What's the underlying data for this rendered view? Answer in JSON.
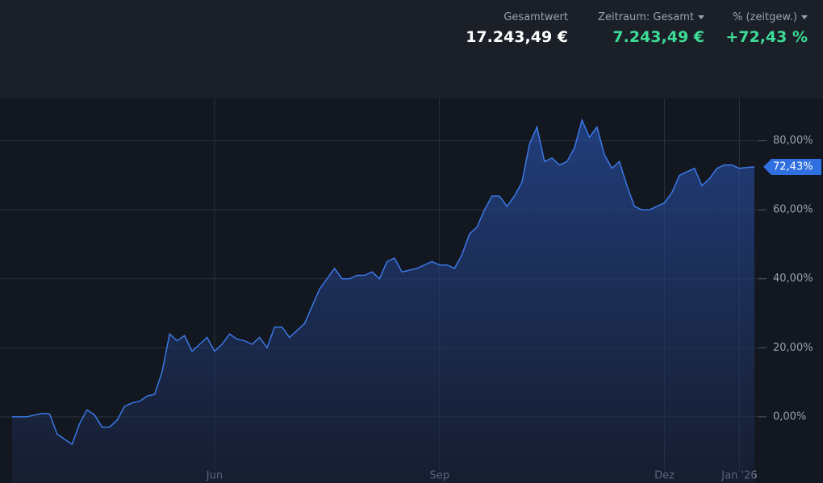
{
  "header": {
    "items": [
      {
        "label": "Gesamtwert",
        "value": "17.243,49 €"
      },
      {
        "label": "Zeitraum: Gesamt",
        "value": "7.243,49 €"
      },
      {
        "label": "% (zeitgew.)",
        "value": "+72,43 %"
      }
    ]
  },
  "chart_data": {
    "type": "area",
    "categories": [
      null,
      null,
      null,
      null,
      null,
      null,
      null,
      null,
      null,
      null,
      null,
      null,
      null,
      null,
      null,
      null,
      null,
      null,
      null,
      null,
      null,
      null,
      null,
      null,
      null,
      null,
      null,
      "Jun",
      null,
      null,
      null,
      null,
      null,
      null,
      null,
      null,
      null,
      null,
      null,
      null,
      null,
      null,
      null,
      null,
      null,
      null,
      null,
      null,
      null,
      null,
      null,
      null,
      null,
      null,
      null,
      null,
      null,
      "Sep",
      null,
      null,
      null,
      null,
      null,
      null,
      null,
      null,
      null,
      null,
      null,
      null,
      null,
      null,
      null,
      null,
      null,
      null,
      null,
      null,
      null,
      null,
      null,
      null,
      null,
      null,
      null,
      null,
      null,
      "Dez",
      null,
      null,
      null,
      null,
      null,
      null,
      null,
      null,
      null,
      "Jan '26",
      null,
      null
    ],
    "series": [
      {
        "color": "#3b78e7",
        "values": [
          0,
          0,
          0,
          0.5,
          1,
          0.8,
          -5,
          -6.5,
          -8,
          -2,
          2,
          0.5,
          -3,
          -3,
          -1,
          3,
          4,
          4.5,
          6,
          6.5,
          13,
          24,
          22,
          23.5,
          19,
          21,
          23,
          19,
          21,
          24,
          22.5,
          22,
          21,
          23,
          20,
          26,
          26,
          23,
          25,
          27,
          32,
          37,
          40,
          43,
          40,
          40,
          41,
          41,
          42,
          40,
          45,
          46,
          42,
          42.5,
          43,
          44,
          45,
          44,
          44,
          43,
          47,
          53,
          55,
          60,
          64,
          64,
          61,
          64,
          68,
          79,
          84,
          74,
          75,
          73,
          74,
          78,
          86,
          81,
          84,
          76,
          72,
          74,
          67,
          61,
          60,
          60,
          61,
          62,
          65,
          70,
          71,
          72,
          67,
          69,
          72,
          73,
          73,
          72,
          72.3,
          72.43
        ],
        "value_labels": [
          null,
          null,
          null,
          null,
          null,
          null,
          null,
          null,
          null,
          null,
          null,
          null,
          null,
          null,
          null,
          null,
          null,
          null,
          null,
          null,
          null,
          null,
          null,
          null,
          null,
          null,
          null,
          null,
          null,
          null,
          null,
          null,
          null,
          null,
          null,
          null,
          null,
          null,
          null,
          null,
          null,
          null,
          null,
          null,
          null,
          null,
          null,
          null,
          null,
          null,
          null,
          null,
          null,
          null,
          null,
          null,
          null,
          null,
          null,
          null,
          null,
          null,
          null,
          null,
          null,
          null,
          null,
          null,
          null,
          null,
          null,
          null,
          null,
          null,
          null,
          null,
          null,
          null,
          null,
          null,
          null,
          null,
          null,
          null,
          null,
          null,
          null,
          null,
          null,
          null,
          null,
          null,
          null,
          null,
          null,
          null,
          null,
          null,
          null,
          "72,43%"
        ]
      }
    ],
    "ylim": [
      -19.2,
      92.3
    ],
    "yticks": [
      {
        "value": 0,
        "label": "0,00%"
      },
      {
        "value": 20,
        "label": "20,00%"
      },
      {
        "value": 40,
        "label": "40,00%"
      },
      {
        "value": 60,
        "label": "60,00%"
      },
      {
        "value": 80,
        "label": "80,00%"
      }
    ],
    "grid": true
  }
}
